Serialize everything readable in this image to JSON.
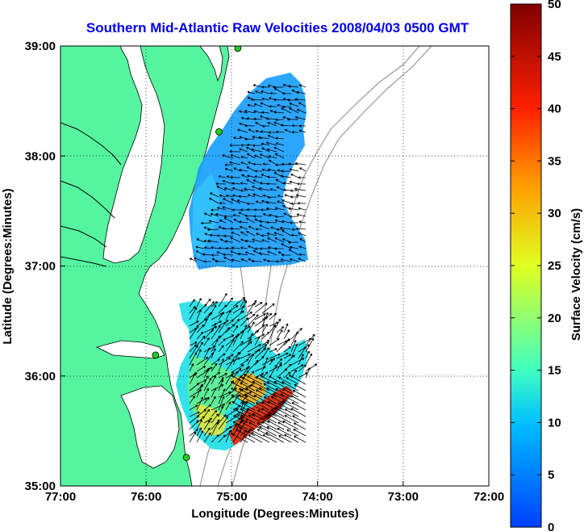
{
  "title": "Southern Mid-Atlantic Raw Velocities 2008/04/03 0500 GMT",
  "xlabel": "Longitude (Degrees:Minutes)",
  "ylabel": "Latitude (Degrees:Minutes)",
  "colorbar_label": "Surface Velocity (cm/s)",
  "colors": {
    "title": "#0000ee",
    "land": "#55f5a0",
    "water": "#ffffff",
    "grid": "#000000",
    "isobath": "#999999"
  },
  "colorbar": {
    "min": 0,
    "max": 50,
    "ticks": [
      "50",
      "45",
      "40",
      "35",
      "30",
      "25",
      "20",
      "15",
      "10",
      "5",
      "0"
    ]
  },
  "x_ticks": [
    "77:00",
    "76:00",
    "75:00",
    "74:00",
    "73:00",
    "72:00"
  ],
  "y_ticks": [
    "39:00",
    "38:00",
    "37:00",
    "36:00",
    "35:00"
  ],
  "map": {
    "lon_range": [
      -77,
      -72
    ],
    "lat_range": [
      35,
      39
    ],
    "velocity_fields": [
      {
        "region": "northern",
        "speed_range_cm_s": [
          4,
          14
        ]
      },
      {
        "region": "southern",
        "speed_range_cm_s": [
          8,
          50
        ]
      }
    ],
    "stations": [
      {
        "lon": -74.93,
        "lat": 38.98
      },
      {
        "lon": -75.15,
        "lat": 38.22
      },
      {
        "lon": -75.89,
        "lat": 36.19
      },
      {
        "lon": -75.53,
        "lat": 35.26
      }
    ]
  }
}
